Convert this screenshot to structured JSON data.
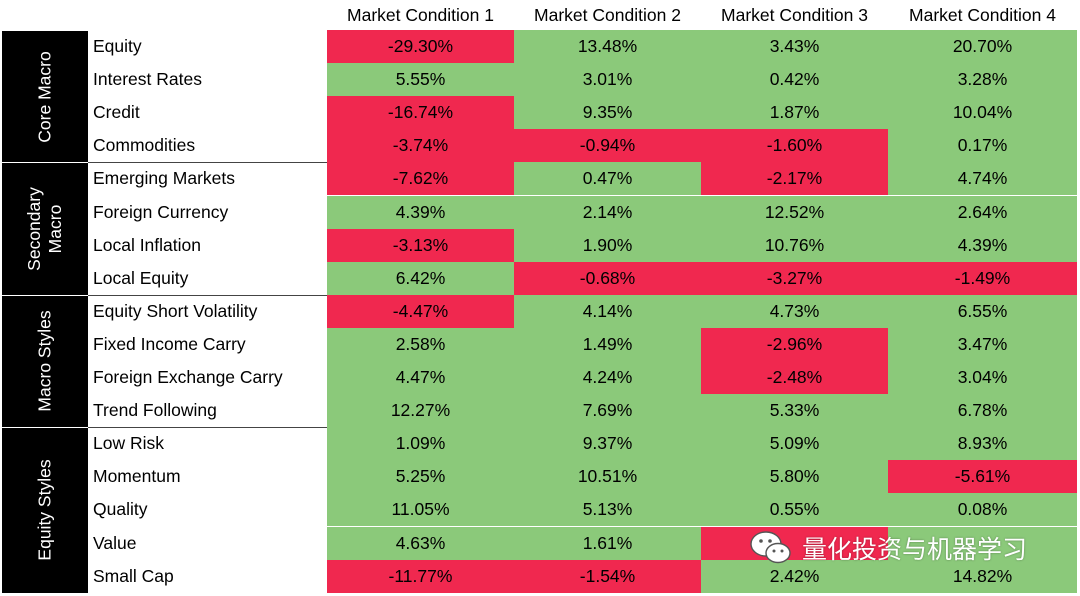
{
  "chart_data": {
    "type": "table",
    "columns": [
      "Market Condition 1",
      "Market Condition 2",
      "Market Condition 3",
      "Market Condition 4"
    ],
    "groups": [
      {
        "name": "Core Macro",
        "rows": [
          {
            "label": "Equity",
            "values": [
              "-29.30%",
              "13.48%",
              "3.43%",
              "20.70%"
            ]
          },
          {
            "label": "Interest Rates",
            "values": [
              "5.55%",
              "3.01%",
              "0.42%",
              "3.28%"
            ]
          },
          {
            "label": "Credit",
            "values": [
              "-16.74%",
              "9.35%",
              "1.87%",
              "10.04%"
            ]
          },
          {
            "label": "Commodities",
            "values": [
              "-3.74%",
              "-0.94%",
              "-1.60%",
              "0.17%"
            ]
          }
        ]
      },
      {
        "name": "Secondary Macro",
        "rows": [
          {
            "label": "Emerging Markets",
            "values": [
              "-7.62%",
              "0.47%",
              "-2.17%",
              "4.74%"
            ]
          },
          {
            "label": "Foreign Currency",
            "values": [
              "4.39%",
              "2.14%",
              "12.52%",
              "2.64%"
            ]
          },
          {
            "label": "Local Inflation",
            "values": [
              "-3.13%",
              "1.90%",
              "10.76%",
              "4.39%"
            ]
          },
          {
            "label": "Local Equity",
            "values": [
              "6.42%",
              "-0.68%",
              "-3.27%",
              "-1.49%"
            ]
          }
        ]
      },
      {
        "name": "Macro Styles",
        "rows": [
          {
            "label": "Equity Short Volatility",
            "values": [
              "-4.47%",
              "4.14%",
              "4.73%",
              "6.55%"
            ]
          },
          {
            "label": "Fixed Income Carry",
            "values": [
              "2.58%",
              "1.49%",
              "-2.96%",
              "3.47%"
            ]
          },
          {
            "label": "Foreign Exchange Carry",
            "values": [
              "4.47%",
              "4.24%",
              "-2.48%",
              "3.04%"
            ]
          },
          {
            "label": "Trend Following",
            "values": [
              "12.27%",
              "7.69%",
              "5.33%",
              "6.78%"
            ]
          }
        ]
      },
      {
        "name": "Equity Styles",
        "rows": [
          {
            "label": "Low Risk",
            "values": [
              "1.09%",
              "9.37%",
              "5.09%",
              "8.93%"
            ]
          },
          {
            "label": "Momentum",
            "values": [
              "5.25%",
              "10.51%",
              "5.80%",
              "-5.61%"
            ]
          },
          {
            "label": "Quality",
            "values": [
              "11.05%",
              "5.13%",
              "0.55%",
              "0.08%"
            ]
          },
          {
            "label": "Value",
            "values": [
              "4.63%",
              "1.61%",
              "",
              ""
            ]
          },
          {
            "label": "Small Cap",
            "values": [
              "-11.77%",
              "-1.54%",
              "2.42%",
              "14.82%"
            ]
          }
        ]
      }
    ],
    "value_row_colors": {
      "Value": [
        "positive",
        "positive",
        "negative",
        "positive"
      ]
    }
  },
  "colors": {
    "positive": "#8bc97a",
    "negative": "#f0284f",
    "group_bg": "#000000",
    "group_text": "#ffffff"
  },
  "watermark": {
    "icon": "wechat-icon",
    "text": "量化投资与机器学习"
  }
}
